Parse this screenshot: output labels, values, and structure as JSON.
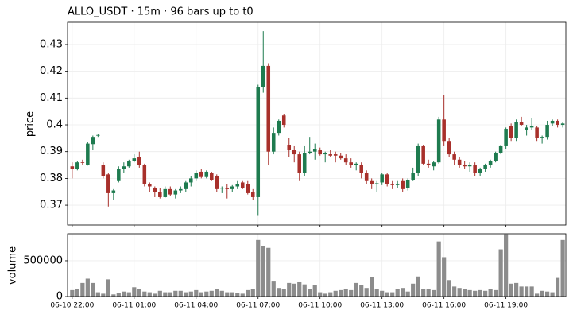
{
  "chart_data": [
    {
      "type": "candlestick",
      "title": "ALLO_USDT  ·  15m  ·  96 bars up to t0",
      "y_label": "price",
      "up_color": "#1e7b4f",
      "down_color": "#a8302b",
      "grid": true,
      "xlim": [
        -0.9,
        95.6
      ],
      "ylim": [
        0.3626,
        0.4383
      ],
      "yticks": [
        0.37,
        0.38,
        0.39,
        0.4,
        0.41,
        0.42,
        0.43
      ],
      "open": [
        0.3845,
        0.3835,
        0.386,
        0.385,
        0.3928,
        0.396,
        0.385,
        0.3815,
        0.3745,
        0.379,
        0.3835,
        0.3845,
        0.3865,
        0.388,
        0.385,
        0.378,
        0.3765,
        0.3748,
        0.373,
        0.376,
        0.374,
        0.3755,
        0.376,
        0.3785,
        0.38,
        0.3825,
        0.3805,
        0.382,
        0.381,
        0.3762,
        0.3765,
        0.376,
        0.377,
        0.3785,
        0.378,
        0.375,
        0.373,
        0.414,
        0.422,
        0.39,
        0.397,
        0.4035,
        0.3925,
        0.3905,
        0.389,
        0.382,
        0.3895,
        0.39,
        0.3905,
        0.389,
        0.389,
        0.389,
        0.3885,
        0.3875,
        0.386,
        0.385,
        0.385,
        0.382,
        0.379,
        0.378,
        0.3785,
        0.3815,
        0.378,
        0.3775,
        0.379,
        0.3765,
        0.3795,
        0.382,
        0.392,
        0.3855,
        0.3845,
        0.386,
        0.402,
        0.394,
        0.389,
        0.387,
        0.385,
        0.3845,
        0.385,
        0.382,
        0.3835,
        0.385,
        0.3865,
        0.3895,
        0.392,
        0.3995,
        0.395,
        0.401,
        0.398,
        0.399,
        0.399,
        0.395,
        0.3955,
        0.4005,
        0.4015,
        0.4
      ],
      "high": [
        0.386,
        0.3865,
        0.387,
        0.3935,
        0.396,
        0.3965,
        0.386,
        0.382,
        0.376,
        0.3845,
        0.386,
        0.387,
        0.389,
        0.39,
        0.3855,
        0.3785,
        0.377,
        0.3765,
        0.377,
        0.377,
        0.376,
        0.377,
        0.379,
        0.381,
        0.383,
        0.3835,
        0.383,
        0.3825,
        0.3815,
        0.377,
        0.378,
        0.3775,
        0.379,
        0.379,
        0.379,
        0.376,
        0.415,
        0.435,
        0.423,
        0.399,
        0.402,
        0.404,
        0.395,
        0.392,
        0.39,
        0.392,
        0.3955,
        0.393,
        0.3915,
        0.39,
        0.3905,
        0.39,
        0.3895,
        0.389,
        0.3875,
        0.386,
        0.386,
        0.383,
        0.38,
        0.379,
        0.382,
        0.382,
        0.379,
        0.379,
        0.38,
        0.38,
        0.384,
        0.393,
        0.3925,
        0.387,
        0.3865,
        0.403,
        0.411,
        0.395,
        0.39,
        0.388,
        0.3865,
        0.386,
        0.386,
        0.384,
        0.3855,
        0.387,
        0.39,
        0.3925,
        0.399,
        0.4005,
        0.402,
        0.403,
        0.4,
        0.4025,
        0.3995,
        0.396,
        0.4015,
        0.402,
        0.402,
        0.401
      ],
      "low": [
        0.38,
        0.383,
        0.385,
        0.3848,
        0.3905,
        0.3955,
        0.38,
        0.3695,
        0.372,
        0.3785,
        0.382,
        0.384,
        0.386,
        0.384,
        0.377,
        0.375,
        0.373,
        0.3725,
        0.3728,
        0.3735,
        0.3725,
        0.3745,
        0.375,
        0.377,
        0.379,
        0.38,
        0.38,
        0.379,
        0.375,
        0.3745,
        0.3725,
        0.375,
        0.376,
        0.376,
        0.374,
        0.372,
        0.366,
        0.412,
        0.385,
        0.389,
        0.396,
        0.399,
        0.388,
        0.386,
        0.379,
        0.381,
        0.389,
        0.387,
        0.3885,
        0.386,
        0.388,
        0.386,
        0.387,
        0.385,
        0.384,
        0.383,
        0.38,
        0.378,
        0.376,
        0.375,
        0.3775,
        0.377,
        0.376,
        0.3765,
        0.375,
        0.3755,
        0.379,
        0.381,
        0.385,
        0.384,
        0.383,
        0.3855,
        0.392,
        0.388,
        0.385,
        0.384,
        0.3835,
        0.3825,
        0.381,
        0.381,
        0.3825,
        0.384,
        0.386,
        0.389,
        0.391,
        0.394,
        0.394,
        0.3995,
        0.396,
        0.398,
        0.394,
        0.393,
        0.3945,
        0.3995,
        0.399,
        0.399
      ],
      "close": [
        0.3835,
        0.386,
        0.3858,
        0.393,
        0.3955,
        0.3962,
        0.381,
        0.3745,
        0.3755,
        0.3835,
        0.3845,
        0.3865,
        0.3875,
        0.385,
        0.378,
        0.377,
        0.375,
        0.373,
        0.376,
        0.374,
        0.3755,
        0.376,
        0.3785,
        0.38,
        0.382,
        0.3805,
        0.3825,
        0.3795,
        0.376,
        0.3765,
        0.376,
        0.377,
        0.378,
        0.3765,
        0.3745,
        0.373,
        0.414,
        0.422,
        0.39,
        0.397,
        0.4015,
        0.4,
        0.3905,
        0.389,
        0.382,
        0.3895,
        0.39,
        0.391,
        0.389,
        0.3895,
        0.3885,
        0.3885,
        0.3875,
        0.386,
        0.385,
        0.3855,
        0.382,
        0.379,
        0.378,
        0.3782,
        0.3815,
        0.378,
        0.3775,
        0.378,
        0.376,
        0.3795,
        0.382,
        0.392,
        0.3855,
        0.385,
        0.386,
        0.402,
        0.394,
        0.389,
        0.387,
        0.385,
        0.3845,
        0.385,
        0.382,
        0.3835,
        0.385,
        0.3865,
        0.3895,
        0.392,
        0.3985,
        0.395,
        0.401,
        0.4,
        0.399,
        0.3995,
        0.395,
        0.3955,
        0.4,
        0.4015,
        0.4,
        0.4005
      ]
    },
    {
      "type": "bar",
      "y_label": "volume",
      "color": "#8c8c8c",
      "grid": true,
      "xlim": [
        -0.9,
        95.6
      ],
      "ylim": [
        0,
        877000
      ],
      "yticks": [
        0,
        500000
      ],
      "xticks": [
        {
          "value": 0,
          "label": "06-10 22:00"
        },
        {
          "value": 12,
          "label": "06-11 01:00"
        },
        {
          "value": 24,
          "label": "06-11 04:00"
        },
        {
          "value": 36,
          "label": "06-11 07:00"
        },
        {
          "value": 48,
          "label": "06-11 10:00"
        },
        {
          "value": 60,
          "label": "06-11 13:00"
        },
        {
          "value": 72,
          "label": "06-11 16:00"
        },
        {
          "value": 84,
          "label": "06-11 19:00"
        }
      ],
      "values": [
        90000,
        110000,
        190000,
        250000,
        190000,
        60000,
        40000,
        240000,
        30000,
        50000,
        70000,
        60000,
        130000,
        110000,
        70000,
        60000,
        40000,
        80000,
        60000,
        60000,
        80000,
        80000,
        60000,
        70000,
        90000,
        60000,
        70000,
        80000,
        100000,
        80000,
        60000,
        60000,
        50000,
        40000,
        90000,
        100000,
        790000,
        700000,
        680000,
        210000,
        120000,
        100000,
        190000,
        180000,
        200000,
        170000,
        110000,
        160000,
        60000,
        40000,
        60000,
        80000,
        90000,
        100000,
        90000,
        190000,
        160000,
        120000,
        270000,
        100000,
        80000,
        60000,
        60000,
        110000,
        120000,
        70000,
        180000,
        280000,
        110000,
        100000,
        90000,
        770000,
        550000,
        230000,
        140000,
        120000,
        100000,
        90000,
        80000,
        90000,
        80000,
        100000,
        90000,
        660000,
        870000,
        180000,
        190000,
        140000,
        140000,
        140000,
        40000,
        80000,
        70000,
        60000,
        260000,
        790000
      ]
    }
  ]
}
